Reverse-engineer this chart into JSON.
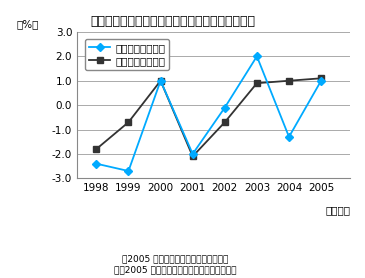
{
  "title": "市内総生産及び国内総生産対前年度伸び率の推移",
  "ylabel": "（%）",
  "xlabel_suffix": "（年度）",
  "years": [
    1998,
    1999,
    2000,
    2001,
    2002,
    2003,
    2004,
    2005
  ],
  "shimin": [
    -2.4,
    -2.7,
    1.0,
    -2.0,
    -0.1,
    2.0,
    -1.3,
    1.0
  ],
  "kokkai": [
    -1.8,
    -0.7,
    1.0,
    -2.1,
    -0.7,
    0.9,
    1.0,
    1.1
  ],
  "shimin_color": "#00aaff",
  "kokkai_color": "#333333",
  "legend_shimin": "市内総生産伸び率",
  "legend_kokkai": "国内総生産伸び率",
  "ylim": [
    -3.0,
    3.0
  ],
  "yticks": [
    -3.0,
    -2.0,
    -1.0,
    0.0,
    1.0,
    2.0,
    3.0
  ],
  "caption_line1": "（2005 年度『川崎市市民経済計算』、",
  "caption_line2": "2005 年度『国民経済計算』（内閣府））",
  "bg_color": "#ffffff",
  "grid_color": "#888888"
}
